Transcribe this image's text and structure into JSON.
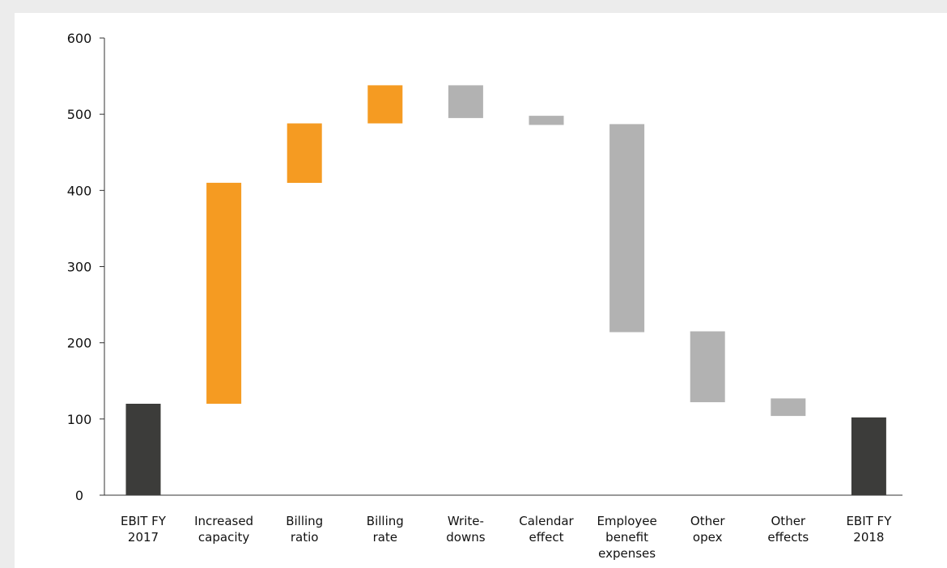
{
  "chart_data": {
    "type": "bar",
    "subtype": "waterfall",
    "title": "",
    "xlabel": "",
    "ylabel": "",
    "ylim": [
      0,
      600
    ],
    "yticks": [
      0,
      100,
      200,
      300,
      400,
      500,
      600
    ],
    "grid": false,
    "legend": "none",
    "categories": [
      [
        "EBIT FY",
        "2017"
      ],
      [
        "Increased",
        "capacity"
      ],
      [
        "Billing",
        "ratio"
      ],
      [
        "Billing",
        "rate"
      ],
      [
        "Write-",
        "downs"
      ],
      [
        "Calendar",
        "effect"
      ],
      [
        "Employee",
        "benefit",
        "expenses"
      ],
      [
        "Other",
        "opex"
      ],
      [
        "Other",
        "effects"
      ],
      [
        "EBIT FY",
        "2018"
      ]
    ],
    "bars": [
      {
        "start": 0,
        "end": 120,
        "kind": "total"
      },
      {
        "start": 120,
        "end": 410,
        "kind": "increase"
      },
      {
        "start": 410,
        "end": 488,
        "kind": "increase"
      },
      {
        "start": 488,
        "end": 538,
        "kind": "increase"
      },
      {
        "start": 538,
        "end": 495,
        "kind": "decrease"
      },
      {
        "start": 498,
        "end": 486,
        "kind": "decrease"
      },
      {
        "start": 487,
        "end": 214,
        "kind": "decrease"
      },
      {
        "start": 215,
        "end": 122,
        "kind": "decrease"
      },
      {
        "start": 127,
        "end": 104,
        "kind": "decrease"
      },
      {
        "start": 0,
        "end": 102,
        "kind": "total"
      }
    ],
    "colors": {
      "total": "#3c3c3a",
      "increase": "#f59b22",
      "decrease": "#b2b2b2",
      "axis": "#333333"
    }
  }
}
